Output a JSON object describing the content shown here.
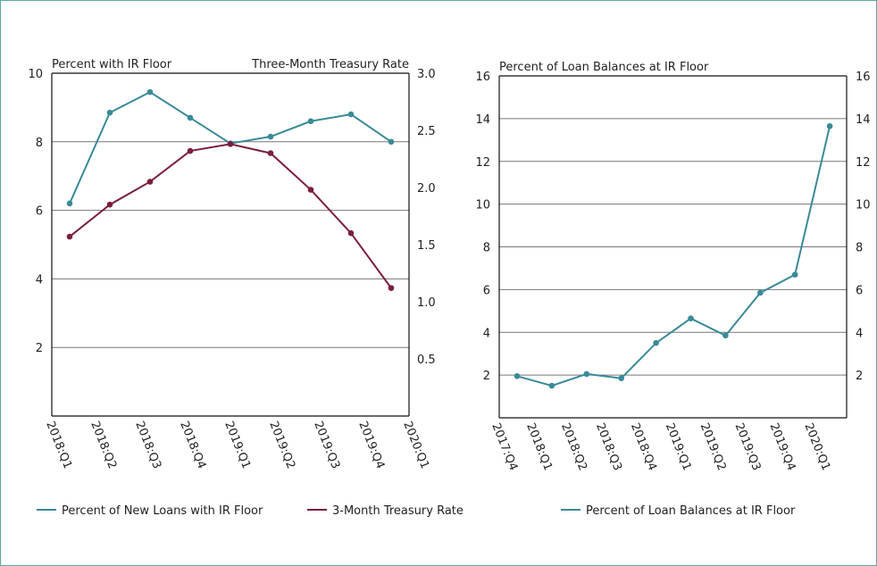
{
  "colors": {
    "teal": "#3a8a98",
    "maroon": "#7a1f3a",
    "grid": "#777777",
    "axis": "#111111",
    "frame": "#5aa9a6"
  },
  "chart_data": [
    {
      "type": "line",
      "left_title": "Percent with IR Floor",
      "right_title": "Three-Month Treasury Rate",
      "categories": [
        "2018:Q1",
        "2018:Q2",
        "2018:Q3",
        "2018:Q4",
        "2019:Q1",
        "2019:Q2",
        "2019:Q3",
        "2019:Q4",
        "2020:Q1"
      ],
      "left_ylim": [
        0,
        10
      ],
      "left_ticks": [
        "2",
        "4",
        "6",
        "8",
        "10"
      ],
      "right_ylim": [
        0,
        3.0
      ],
      "right_ticks": [
        "0.5",
        "1.0",
        "1.5",
        "2.0",
        "2.5",
        "3.0"
      ],
      "grid": true,
      "legend_position": "bottom",
      "series": [
        {
          "name": "Percent of New Loans with IR Floor",
          "axis": "left",
          "color": "#3a8a98",
          "values": [
            6.2,
            8.85,
            9.45,
            8.7,
            7.95,
            8.15,
            8.6,
            8.8,
            8.0
          ]
        },
        {
          "name": "3-Month Treasury Rate",
          "axis": "right",
          "color": "#7a1f3a",
          "values": [
            1.57,
            1.85,
            2.05,
            2.32,
            2.38,
            2.3,
            1.98,
            1.6,
            1.12
          ]
        }
      ]
    },
    {
      "type": "line",
      "title": "Percent of Loan Balances at IR Floor",
      "categories": [
        "2017:Q4",
        "2018:Q1",
        "2018:Q2",
        "2018:Q3",
        "2018:Q4",
        "2019:Q1",
        "2019:Q2",
        "2019:Q3",
        "2019:Q4",
        "2020:Q1"
      ],
      "ylim": [
        0,
        16
      ],
      "ticks": [
        "2",
        "4",
        "6",
        "8",
        "10",
        "12",
        "14",
        "16"
      ],
      "grid": true,
      "legend_position": "bottom",
      "series": [
        {
          "name": "Percent of Loan Balances at IR Floor",
          "color": "#3a8a98",
          "values": [
            1.95,
            1.5,
            2.05,
            1.85,
            3.5,
            4.65,
            3.85,
            5.85,
            6.7,
            13.65
          ]
        }
      ]
    }
  ]
}
